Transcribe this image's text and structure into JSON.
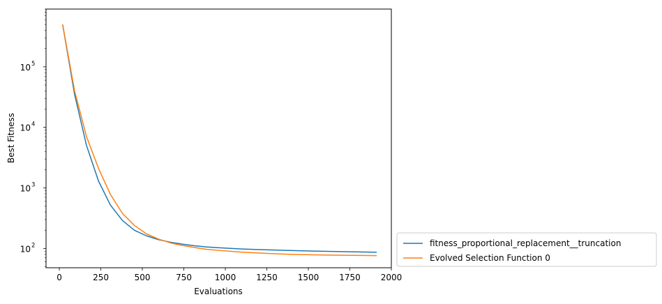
{
  "chart_data": {
    "type": "line",
    "title": "",
    "xlabel": "Evaluations",
    "ylabel": "Best Fitness",
    "xlim": [
      -80,
      2000
    ],
    "ylim": [
      48,
      900000
    ],
    "yscale": "log",
    "grid": false,
    "legend_position": "outside-lower-right",
    "x_ticks": [
      0,
      250,
      500,
      750,
      1000,
      1250,
      1500,
      1750,
      2000
    ],
    "x_tick_labels": [
      "0",
      "250",
      "500",
      "750",
      "1000",
      "1250",
      "1500",
      "1750",
      "2000"
    ],
    "y_ticks": [
      100,
      1000,
      10000,
      100000
    ],
    "y_tick_labels": [
      {
        "base": "10",
        "exp": "2"
      },
      {
        "base": "10",
        "exp": "3"
      },
      {
        "base": "10",
        "exp": "4"
      },
      {
        "base": "10",
        "exp": "5"
      }
    ],
    "series": [
      {
        "name": "fitness_proportional_replacement__truncation",
        "color": "#1f77b4",
        "x": [
          20,
          92,
          164,
          236,
          308,
          380,
          452,
          524,
          596,
          668,
          740,
          812,
          884,
          956,
          1100,
          1244,
          1388,
          1532,
          1676,
          1820,
          1912
        ],
        "y": [
          500000,
          35000,
          5000,
          1300,
          520,
          290,
          200,
          162,
          140,
          127,
          118,
          111,
          106,
          103,
          98,
          95,
          92.5,
          90.5,
          89,
          87.5,
          86.5
        ]
      },
      {
        "name": "Evolved Selection Function 0",
        "color": "#ff7f0e",
        "x": [
          20,
          92,
          164,
          236,
          308,
          380,
          452,
          524,
          596,
          668,
          740,
          812,
          884,
          956,
          1100,
          1244,
          1388,
          1532,
          1676,
          1820,
          1912
        ],
        "y": [
          500000,
          40000,
          7000,
          2100,
          780,
          380,
          240,
          175,
          143,
          124,
          112,
          104,
          97,
          93,
          87,
          83,
          80,
          78.5,
          77.5,
          76.5,
          76
        ]
      }
    ]
  }
}
